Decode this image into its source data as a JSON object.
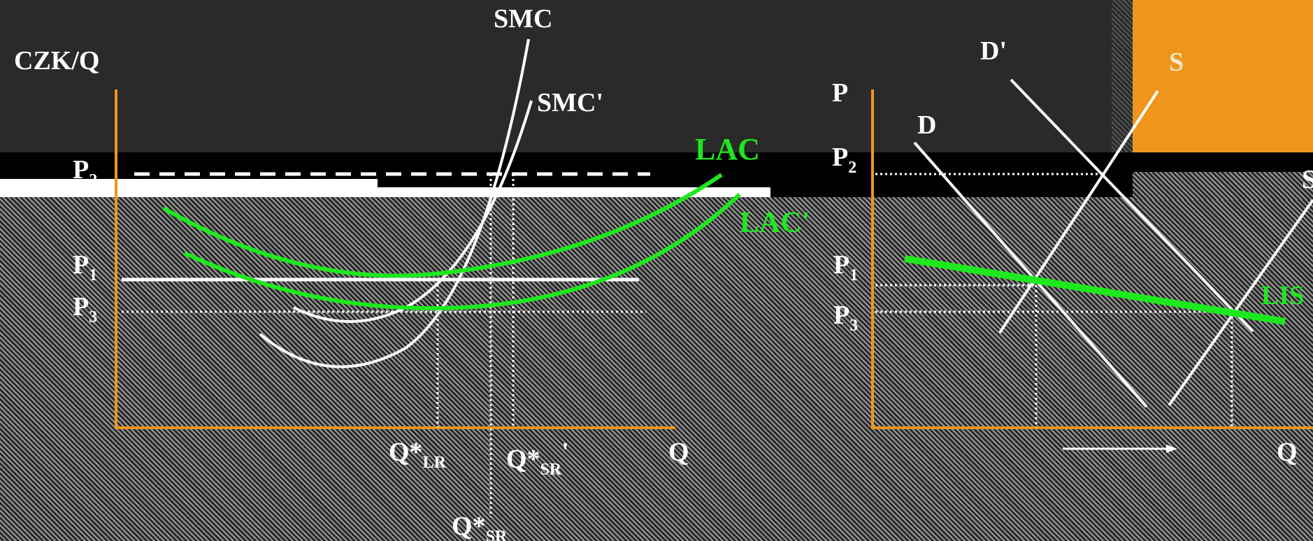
{
  "left_graph": {
    "y_axis_label": "CZK/Q",
    "x_axis_label": "Q",
    "price_labels": {
      "p2": {
        "base": "P",
        "sub": "2"
      },
      "p1": {
        "base": "P",
        "sub": "1"
      },
      "p3": {
        "base": "P",
        "sub": "3"
      }
    },
    "curves": {
      "smc": "SMC",
      "smc_prime": "SMC'",
      "lac": "LAC",
      "lac_prime": "LAC'"
    },
    "quantity_labels": {
      "q_lr": {
        "base": "Q*",
        "sub": "LR",
        "sup": ""
      },
      "q_sr_prime": {
        "base": "Q*",
        "sub": "SR",
        "sup": "'"
      },
      "q_sr": {
        "base": "Q*",
        "sub": "SR",
        "sup": ""
      }
    }
  },
  "right_graph": {
    "y_axis_label": "P",
    "x_axis_label": "Q",
    "price_labels": {
      "p2": {
        "base": "P",
        "sub": "2"
      },
      "p1": {
        "base": "P",
        "sub": "1"
      },
      "p3": {
        "base": "P",
        "sub": "3"
      }
    },
    "curves": {
      "d": "D",
      "d_prime": "D'",
      "s": "S",
      "s_prime_partial": "S",
      "lis_partial": "LIS"
    }
  },
  "colors": {
    "axis": "#ef951c",
    "curve": "#ffffff",
    "cost_curve": "#1ee81e",
    "background": "#2a2a2a"
  }
}
